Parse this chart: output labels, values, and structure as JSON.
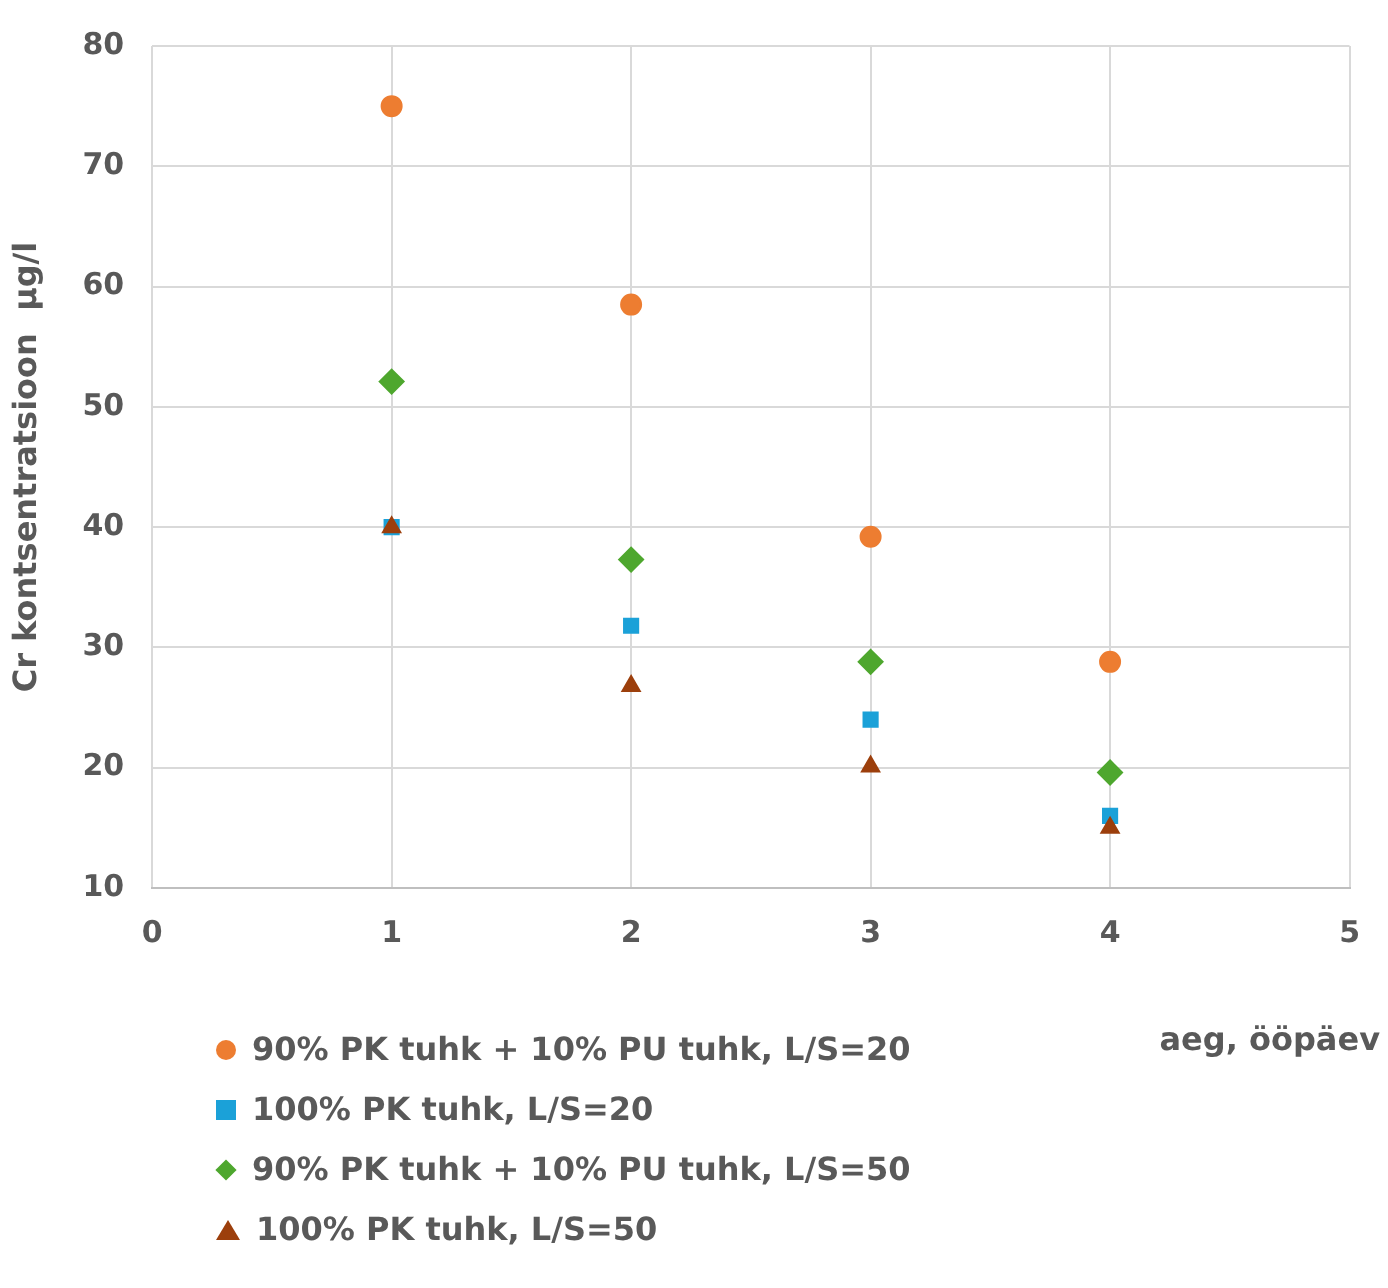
{
  "chart_data": {
    "type": "scatter",
    "ylabel": "Cr kontsentratsioon  µg/l",
    "xlabel": "aeg, ööpäev",
    "x": [
      1,
      2,
      3,
      4
    ],
    "xlim": [
      0,
      5
    ],
    "xticks": [
      0,
      1,
      2,
      3,
      4,
      5
    ],
    "ylim": [
      10,
      80
    ],
    "yticks": [
      10,
      20,
      30,
      40,
      50,
      60,
      70,
      80
    ],
    "grid": true,
    "legend": "bottom",
    "series": [
      {
        "name": "90% PK tuhk + 10% PU tuhk, L/S=20",
        "color": "#ed7d31",
        "marker": "circle",
        "values": [
          75,
          58.5,
          39.2,
          28.8
        ]
      },
      {
        "name": "100% PK tuhk, L/S=20",
        "color": "#1ba1d8",
        "marker": "square",
        "values": [
          40,
          31.8,
          24,
          16
        ]
      },
      {
        "name": "90% PK tuhk + 10% PU tuhk, L/S=50",
        "color": "#4ea72e",
        "marker": "diamond",
        "values": [
          52.1,
          37.3,
          28.8,
          19.6
        ]
      },
      {
        "name": "100% PK tuhk, L/S=50",
        "color": "#9c3f0c",
        "marker": "triangle",
        "values": [
          40,
          26.8,
          20.1,
          15
        ]
      }
    ]
  }
}
